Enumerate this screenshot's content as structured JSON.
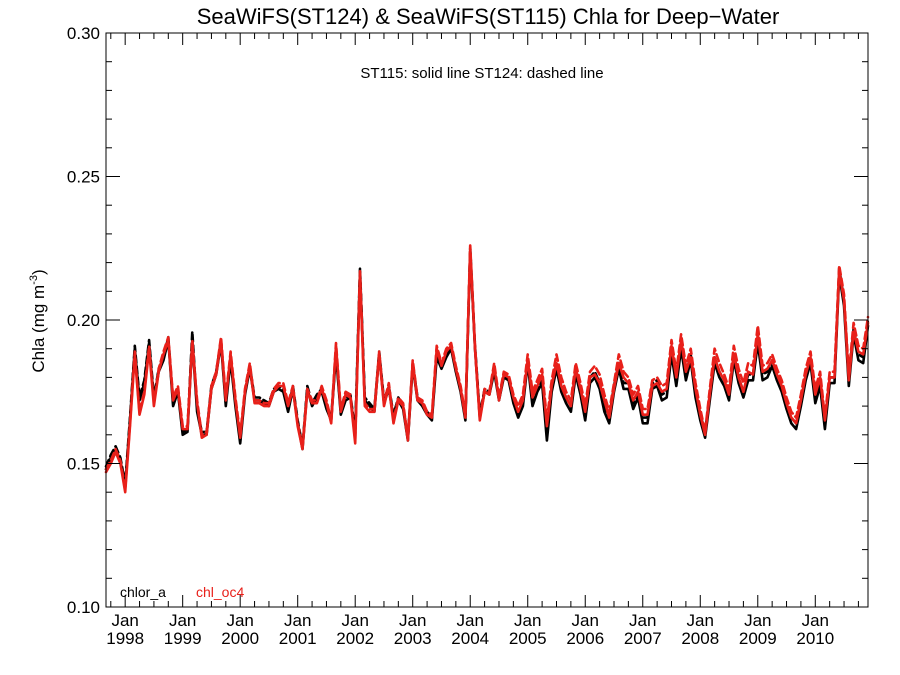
{
  "chart_data": {
    "type": "line",
    "title": "SeaWiFS(ST124) & SeaWiFS(ST115)  Chla for Deep−Water",
    "annotation": "ST115: solid line   ST124: dashed line",
    "ylabel": "Chla (mg m",
    "ylabel_sup": "-3",
    "ylabel_close": ")",
    "ylim": [
      0.1,
      0.3
    ],
    "xlim": [
      "1997-09",
      "2010-12"
    ],
    "grid": false,
    "yticks": [
      {
        "value": 0.1,
        "label": "0.10"
      },
      {
        "value": 0.15,
        "label": "0.15"
      },
      {
        "value": 0.2,
        "label": "0.20"
      },
      {
        "value": 0.25,
        "label": "0.25"
      },
      {
        "value": 0.3,
        "label": "0.30"
      }
    ],
    "xticks": [
      {
        "date": "1998-01",
        "label1": "Jan",
        "label2": "1998"
      },
      {
        "date": "1999-01",
        "label1": "Jan",
        "label2": "1999"
      },
      {
        "date": "2000-01",
        "label1": "Jan",
        "label2": "2000"
      },
      {
        "date": "2001-01",
        "label1": "Jan",
        "label2": "2001"
      },
      {
        "date": "2002-01",
        "label1": "Jan",
        "label2": "2002"
      },
      {
        "date": "2003-01",
        "label1": "Jan",
        "label2": "2003"
      },
      {
        "date": "2004-01",
        "label1": "Jan",
        "label2": "2004"
      },
      {
        "date": "2005-01",
        "label1": "Jan",
        "label2": "2005"
      },
      {
        "date": "2006-01",
        "label1": "Jan",
        "label2": "2006"
      },
      {
        "date": "2007-01",
        "label1": "Jan",
        "label2": "2007"
      },
      {
        "date": "2008-01",
        "label1": "Jan",
        "label2": "2008"
      },
      {
        "date": "2009-01",
        "label1": "Jan",
        "label2": "2009"
      },
      {
        "date": "2010-01",
        "label1": "Jan",
        "label2": "2010"
      }
    ],
    "legend": [
      {
        "label": "chlor_a",
        "color": "#000000"
      },
      {
        "label": "chl_oc4",
        "color": "#e8201a"
      }
    ],
    "start_month": "1997-09",
    "series": [
      {
        "name": "chlor_a",
        "sensor": "ST115",
        "style": "solid",
        "color": "#000000",
        "values": [
          0.148,
          0.152,
          0.155,
          0.151,
          0.142,
          0.165,
          0.19,
          0.172,
          0.178,
          0.192,
          0.172,
          0.182,
          0.186,
          0.193,
          0.17,
          0.175,
          0.16,
          0.161,
          0.193,
          0.168,
          0.16,
          0.16,
          0.176,
          0.181,
          0.192,
          0.17,
          0.186,
          0.17,
          0.157,
          0.174,
          0.183,
          0.172,
          0.172,
          0.171,
          0.17,
          0.175,
          0.176,
          0.175,
          0.168,
          0.176,
          0.164,
          0.155,
          0.176,
          0.17,
          0.173,
          0.175,
          0.169,
          0.165,
          0.188,
          0.167,
          0.172,
          0.173,
          0.16,
          0.217,
          0.172,
          0.17,
          0.168,
          0.188,
          0.171,
          0.176,
          0.166,
          0.172,
          0.169,
          0.158,
          0.184,
          0.172,
          0.17,
          0.167,
          0.165,
          0.187,
          0.183,
          0.187,
          0.19,
          0.182,
          0.175,
          0.165,
          0.224,
          0.19,
          0.166,
          0.175,
          0.174,
          0.182,
          0.172,
          0.18,
          0.179,
          0.171,
          0.166,
          0.17,
          0.185,
          0.17,
          0.175,
          0.178,
          0.158,
          0.175,
          0.183,
          0.175,
          0.171,
          0.168,
          0.181,
          0.174,
          0.165,
          0.178,
          0.18,
          0.176,
          0.168,
          0.164,
          0.175,
          0.183,
          0.176,
          0.176,
          0.169,
          0.173,
          0.164,
          0.164,
          0.176,
          0.177,
          0.172,
          0.173,
          0.188,
          0.177,
          0.19,
          0.179,
          0.186,
          0.173,
          0.165,
          0.159,
          0.172,
          0.185,
          0.18,
          0.177,
          0.172,
          0.186,
          0.178,
          0.173,
          0.179,
          0.179,
          0.192,
          0.179,
          0.18,
          0.184,
          0.179,
          0.175,
          0.169,
          0.164,
          0.162,
          0.17,
          0.179,
          0.185,
          0.171,
          0.177,
          0.162,
          0.178,
          0.178,
          0.216,
          0.205,
          0.177,
          0.195,
          0.186,
          0.185,
          0.198
        ]
      },
      {
        "name": "chlor_a",
        "sensor": "ST124",
        "style": "dashed",
        "color": "#000000",
        "values": [
          0.149,
          0.153,
          0.156,
          0.152,
          0.143,
          0.166,
          0.191,
          0.173,
          0.179,
          0.193,
          0.173,
          0.183,
          0.187,
          0.194,
          0.171,
          0.176,
          0.161,
          0.162,
          0.196,
          0.169,
          0.161,
          0.161,
          0.177,
          0.182,
          0.193,
          0.171,
          0.187,
          0.171,
          0.158,
          0.175,
          0.184,
          0.173,
          0.173,
          0.172,
          0.171,
          0.176,
          0.177,
          0.176,
          0.169,
          0.177,
          0.165,
          0.156,
          0.177,
          0.171,
          0.174,
          0.176,
          0.17,
          0.166,
          0.189,
          0.168,
          0.173,
          0.174,
          0.161,
          0.218,
          0.173,
          0.171,
          0.169,
          0.189,
          0.172,
          0.177,
          0.167,
          0.173,
          0.17,
          0.159,
          0.185,
          0.173,
          0.171,
          0.168,
          0.166,
          0.188,
          0.184,
          0.188,
          0.191,
          0.183,
          0.176,
          0.166,
          0.225,
          0.191,
          0.167,
          0.176,
          0.175,
          0.183,
          0.173,
          0.181,
          0.18,
          0.172,
          0.167,
          0.171,
          0.186,
          0.171,
          0.176,
          0.179,
          0.16,
          0.177,
          0.185,
          0.177,
          0.173,
          0.17,
          0.183,
          0.176,
          0.167,
          0.18,
          0.182,
          0.178,
          0.17,
          0.166,
          0.177,
          0.185,
          0.178,
          0.178,
          0.171,
          0.175,
          0.166,
          0.166,
          0.178,
          0.179,
          0.174,
          0.175,
          0.19,
          0.179,
          0.192,
          0.181,
          0.188,
          0.175,
          0.167,
          0.161,
          0.174,
          0.187,
          0.182,
          0.179,
          0.174,
          0.188,
          0.18,
          0.175,
          0.181,
          0.181,
          0.194,
          0.181,
          0.182,
          0.186,
          0.181,
          0.177,
          0.171,
          0.166,
          0.164,
          0.172,
          0.181,
          0.187,
          0.173,
          0.179,
          0.164,
          0.18,
          0.18,
          0.218,
          0.207,
          0.179,
          0.197,
          0.188,
          0.187,
          0.2
        ]
      },
      {
        "name": "chl_oc4",
        "sensor": "ST115",
        "style": "solid",
        "color": "#e8201a",
        "values": [
          0.147,
          0.15,
          0.154,
          0.15,
          0.14,
          0.163,
          0.188,
          0.167,
          0.174,
          0.19,
          0.17,
          0.182,
          0.188,
          0.193,
          0.172,
          0.176,
          0.162,
          0.162,
          0.192,
          0.171,
          0.159,
          0.16,
          0.176,
          0.181,
          0.193,
          0.172,
          0.188,
          0.172,
          0.159,
          0.175,
          0.184,
          0.171,
          0.171,
          0.17,
          0.17,
          0.175,
          0.177,
          0.177,
          0.17,
          0.176,
          0.163,
          0.155,
          0.175,
          0.171,
          0.171,
          0.176,
          0.171,
          0.164,
          0.191,
          0.168,
          0.174,
          0.173,
          0.157,
          0.216,
          0.17,
          0.168,
          0.168,
          0.188,
          0.17,
          0.177,
          0.164,
          0.172,
          0.17,
          0.158,
          0.185,
          0.172,
          0.171,
          0.167,
          0.166,
          0.19,
          0.184,
          0.189,
          0.191,
          0.183,
          0.176,
          0.166,
          0.225,
          0.19,
          0.165,
          0.175,
          0.174,
          0.184,
          0.172,
          0.181,
          0.18,
          0.173,
          0.168,
          0.172,
          0.186,
          0.173,
          0.177,
          0.181,
          0.163,
          0.177,
          0.185,
          0.177,
          0.173,
          0.17,
          0.183,
          0.176,
          0.168,
          0.18,
          0.181,
          0.178,
          0.172,
          0.166,
          0.176,
          0.185,
          0.18,
          0.178,
          0.172,
          0.175,
          0.167,
          0.167,
          0.177,
          0.178,
          0.175,
          0.176,
          0.191,
          0.18,
          0.193,
          0.182,
          0.187,
          0.176,
          0.167,
          0.16,
          0.174,
          0.187,
          0.182,
          0.179,
          0.174,
          0.188,
          0.18,
          0.175,
          0.182,
          0.181,
          0.195,
          0.182,
          0.183,
          0.186,
          0.181,
          0.177,
          0.171,
          0.166,
          0.164,
          0.172,
          0.181,
          0.187,
          0.174,
          0.18,
          0.165,
          0.18,
          0.18,
          0.217,
          0.207,
          0.179,
          0.196,
          0.189,
          0.188,
          0.199
        ]
      },
      {
        "name": "chl_oc4",
        "sensor": "ST124",
        "style": "dashed",
        "color": "#e8201a",
        "values": [
          0.148,
          0.151,
          0.155,
          0.151,
          0.141,
          0.164,
          0.189,
          0.168,
          0.175,
          0.191,
          0.171,
          0.183,
          0.189,
          0.194,
          0.173,
          0.177,
          0.163,
          0.163,
          0.193,
          0.172,
          0.16,
          0.161,
          0.177,
          0.182,
          0.194,
          0.173,
          0.189,
          0.173,
          0.16,
          0.176,
          0.185,
          0.172,
          0.172,
          0.171,
          0.171,
          0.176,
          0.178,
          0.178,
          0.171,
          0.177,
          0.164,
          0.156,
          0.176,
          0.172,
          0.172,
          0.177,
          0.172,
          0.165,
          0.192,
          0.169,
          0.175,
          0.174,
          0.158,
          0.217,
          0.171,
          0.169,
          0.169,
          0.189,
          0.171,
          0.178,
          0.165,
          0.173,
          0.171,
          0.159,
          0.186,
          0.173,
          0.172,
          0.168,
          0.167,
          0.191,
          0.185,
          0.19,
          0.192,
          0.184,
          0.177,
          0.167,
          0.226,
          0.191,
          0.166,
          0.176,
          0.175,
          0.185,
          0.173,
          0.182,
          0.181,
          0.174,
          0.17,
          0.174,
          0.188,
          0.175,
          0.179,
          0.183,
          0.165,
          0.179,
          0.188,
          0.18,
          0.175,
          0.172,
          0.185,
          0.178,
          0.17,
          0.182,
          0.184,
          0.181,
          0.174,
          0.168,
          0.178,
          0.188,
          0.182,
          0.18,
          0.174,
          0.177,
          0.169,
          0.169,
          0.179,
          0.18,
          0.177,
          0.178,
          0.193,
          0.182,
          0.195,
          0.184,
          0.19,
          0.178,
          0.169,
          0.161,
          0.176,
          0.19,
          0.185,
          0.181,
          0.176,
          0.191,
          0.183,
          0.178,
          0.185,
          0.184,
          0.198,
          0.184,
          0.185,
          0.188,
          0.183,
          0.179,
          0.173,
          0.168,
          0.166,
          0.174,
          0.183,
          0.189,
          0.176,
          0.182,
          0.166,
          0.182,
          0.182,
          0.219,
          0.209,
          0.181,
          0.199,
          0.191,
          0.19,
          0.201
        ]
      }
    ]
  }
}
